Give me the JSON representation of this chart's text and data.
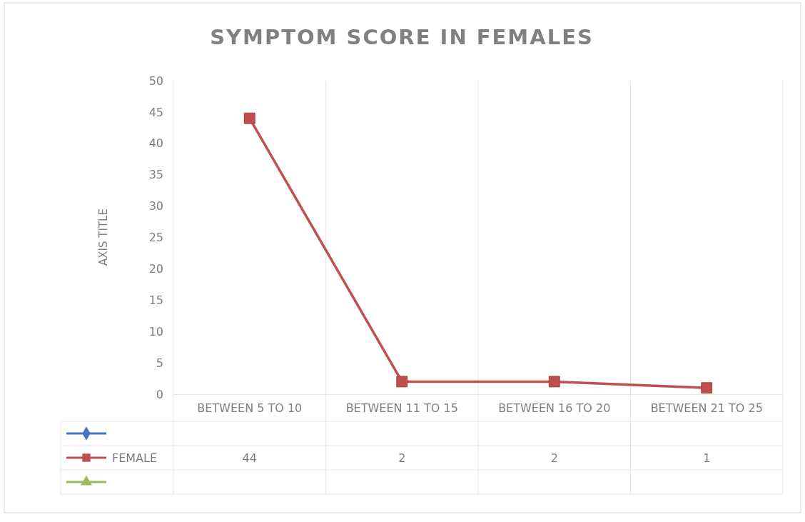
{
  "chart_data": {
    "type": "line",
    "title": "SYMPTOM SCORE IN FEMALES",
    "ylabel": "AXIS TITLE",
    "categories": [
      "BETWEEN 5 TO 10",
      "BETWEEN 11 TO 15",
      "BETWEEN 16 TO 20",
      "BETWEEN 21 TO 25"
    ],
    "series": [
      {
        "color": "#4472c4",
        "marker": "diamond",
        "values": [
          null,
          null,
          null,
          null
        ]
      },
      {
        "name": "FEMALE",
        "color": "#c0504d",
        "marker": "square",
        "values": [
          44,
          2,
          2,
          1
        ]
      },
      {
        "color": "#9bbb59",
        "marker": "triangle",
        "values": [
          null,
          null,
          null,
          null
        ]
      }
    ],
    "ylim": [
      0,
      50
    ],
    "yticks": [
      0,
      5,
      10,
      15,
      20,
      25,
      30,
      35,
      40,
      45,
      50
    ],
    "grid": "x",
    "legend": "bottom",
    "data_labels": true
  }
}
